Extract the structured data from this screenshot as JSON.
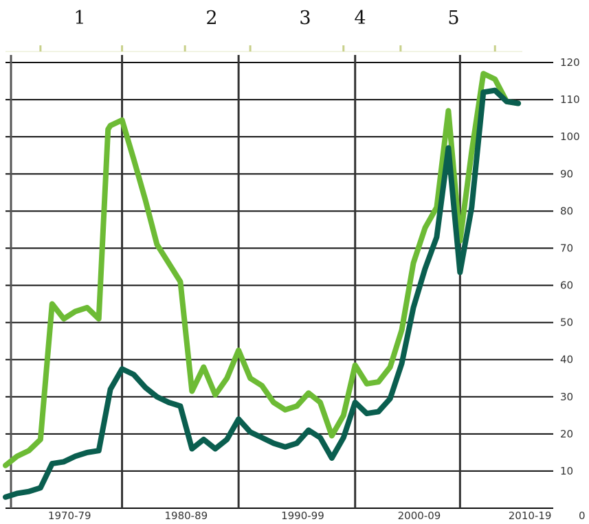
{
  "chart_data": {
    "type": "line",
    "title": "",
    "xlabel": "",
    "ylabel": "",
    "xlim": [
      1969,
      2016
    ],
    "ylim": [
      0,
      120
    ],
    "grid": true,
    "y_axis_side": "right",
    "yticks": [
      0,
      10,
      20,
      30,
      40,
      50,
      60,
      70,
      80,
      90,
      100,
      110,
      120
    ],
    "x_tick_labels": [
      {
        "label": "1970-79",
        "x": 1974.5
      },
      {
        "label": "1980-89",
        "x": 1984.5
      },
      {
        "label": "1990-99",
        "x": 1994.5
      },
      {
        "label": "2000-09",
        "x": 2004.5
      },
      {
        "label": "2010-19",
        "x": 2014.0
      }
    ],
    "markers": [
      {
        "label": "1",
        "x": 1979.0
      },
      {
        "label": "2",
        "x": 1989.0
      },
      {
        "label": "3",
        "x": 1999.0
      },
      {
        "label": "4",
        "x": 2008.0
      },
      {
        "label": "5",
        "x": 2018.0
      }
    ],
    "vertical_lines_x": [
      1979.0,
      1989.0,
      1999.0,
      2008.0
    ],
    "top_notches_x": [
      1972.0,
      1979.0,
      1984.4,
      1990.0,
      1998.0,
      2002.9,
      2011.0
    ],
    "series": [
      {
        "color": "#6dbb35",
        "x": [
          1969.0,
          1970.0,
          1971.0,
          1972.0,
          1973.0,
          1974.0,
          1975.0,
          1976.0,
          1977.0,
          1977.8,
          1978.0,
          1979.0,
          1980.0,
          1981.0,
          1982.0,
          1983.0,
          1984.0,
          1985.0,
          1986.0,
          1987.0,
          1988.0,
          1989.0,
          1990.0,
          1991.0,
          1992.0,
          1993.0,
          1994.0,
          1995.0,
          1996.0,
          1997.0,
          1998.0,
          1999.0,
          2000.0,
          2001.0,
          2002.0,
          2003.0,
          2004.0,
          2005.0,
          2006.0,
          2007.0,
          2008.0,
          2009.0,
          2010.0,
          2011.0,
          2012.0,
          2013.0
        ],
        "y": [
          11.5,
          14,
          15.5,
          18.5,
          55,
          51,
          53,
          54,
          51,
          102,
          103,
          104.5,
          94,
          83,
          71,
          66,
          61,
          31.5,
          38,
          30.5,
          35,
          42.5,
          35,
          33,
          28.5,
          26.5,
          27.5,
          31,
          28.5,
          19.5,
          25,
          38.5,
          33.5,
          34,
          38,
          48,
          66,
          75.5,
          81,
          107,
          72,
          96,
          117,
          115.5,
          109.5,
          109
        ]
      },
      {
        "color": "#0a5e4f",
        "x": [
          1969.0,
          1970.0,
          1971.0,
          1972.0,
          1973.0,
          1974.0,
          1975.0,
          1976.0,
          1977.0,
          1978.0,
          1979.0,
          1980.0,
          1981.0,
          1982.0,
          1983.0,
          1984.0,
          1985.0,
          1986.0,
          1987.0,
          1988.0,
          1989.0,
          1990.0,
          1991.0,
          1992.0,
          1993.0,
          1994.0,
          1995.0,
          1996.0,
          1997.0,
          1998.0,
          1999.0,
          2000.0,
          2001.0,
          2002.0,
          2003.0,
          2004.0,
          2005.0,
          2006.0,
          2007.0,
          2008.0,
          2009.0,
          2010.0,
          2011.0,
          2012.0,
          2013.0
        ],
        "y": [
          3,
          4,
          4.5,
          5.5,
          12,
          12.5,
          14,
          15,
          15.5,
          32,
          37.5,
          36,
          32.5,
          30,
          28.5,
          27.5,
          16,
          18.5,
          16,
          18.5,
          24,
          20.5,
          19,
          17.5,
          16.5,
          17.5,
          21,
          19,
          13.5,
          19,
          28.5,
          25.5,
          26,
          29.5,
          39,
          54,
          64.5,
          73,
          97,
          63.5,
          81,
          112,
          112.5,
          109.5,
          109
        ]
      }
    ]
  }
}
